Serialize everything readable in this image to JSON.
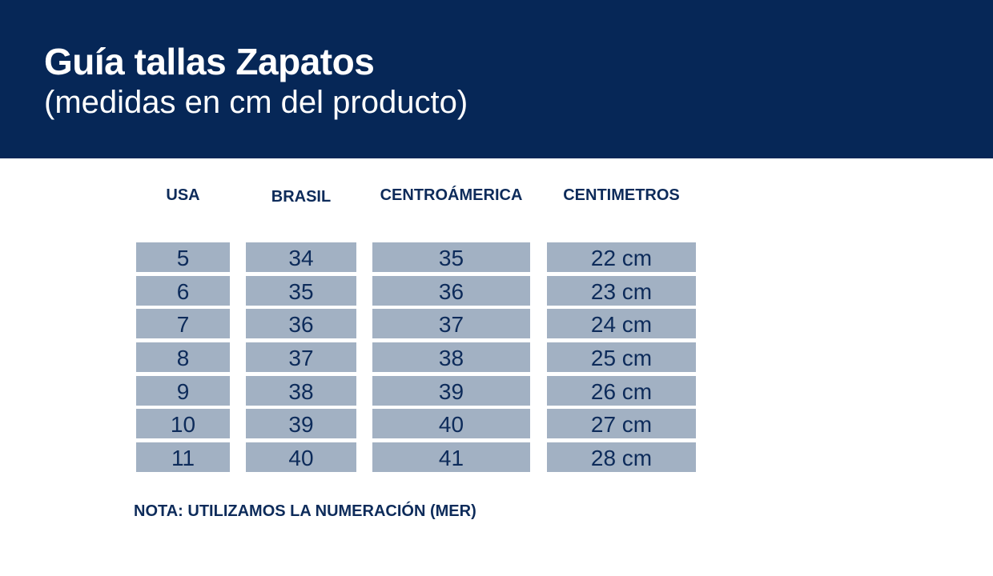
{
  "header": {
    "title": "Guía tallas Zapatos",
    "subtitle": "(medidas en cm del producto)"
  },
  "table": {
    "columns": [
      "USA",
      "BRASIL",
      "CENTROÁMERICA",
      "CENTIMETROS"
    ],
    "rows": [
      [
        "5",
        "34",
        "35",
        "22 cm"
      ],
      [
        "6",
        "35",
        "36",
        "23 cm"
      ],
      [
        "7",
        "36",
        "37",
        "24 cm"
      ],
      [
        "8",
        "37",
        "38",
        "25 cm"
      ],
      [
        "9",
        "38",
        "39",
        "26 cm"
      ],
      [
        "10",
        "39",
        "40",
        "27 cm"
      ],
      [
        "11",
        "40",
        "41",
        "28 cm"
      ]
    ]
  },
  "note": "NOTA: UTILIZAMOS LA NUMERACIÓN (MER)",
  "colors": {
    "header_bg": "#062757",
    "cell_bg": "#a2b1c3",
    "text": "#0d2b5a"
  }
}
